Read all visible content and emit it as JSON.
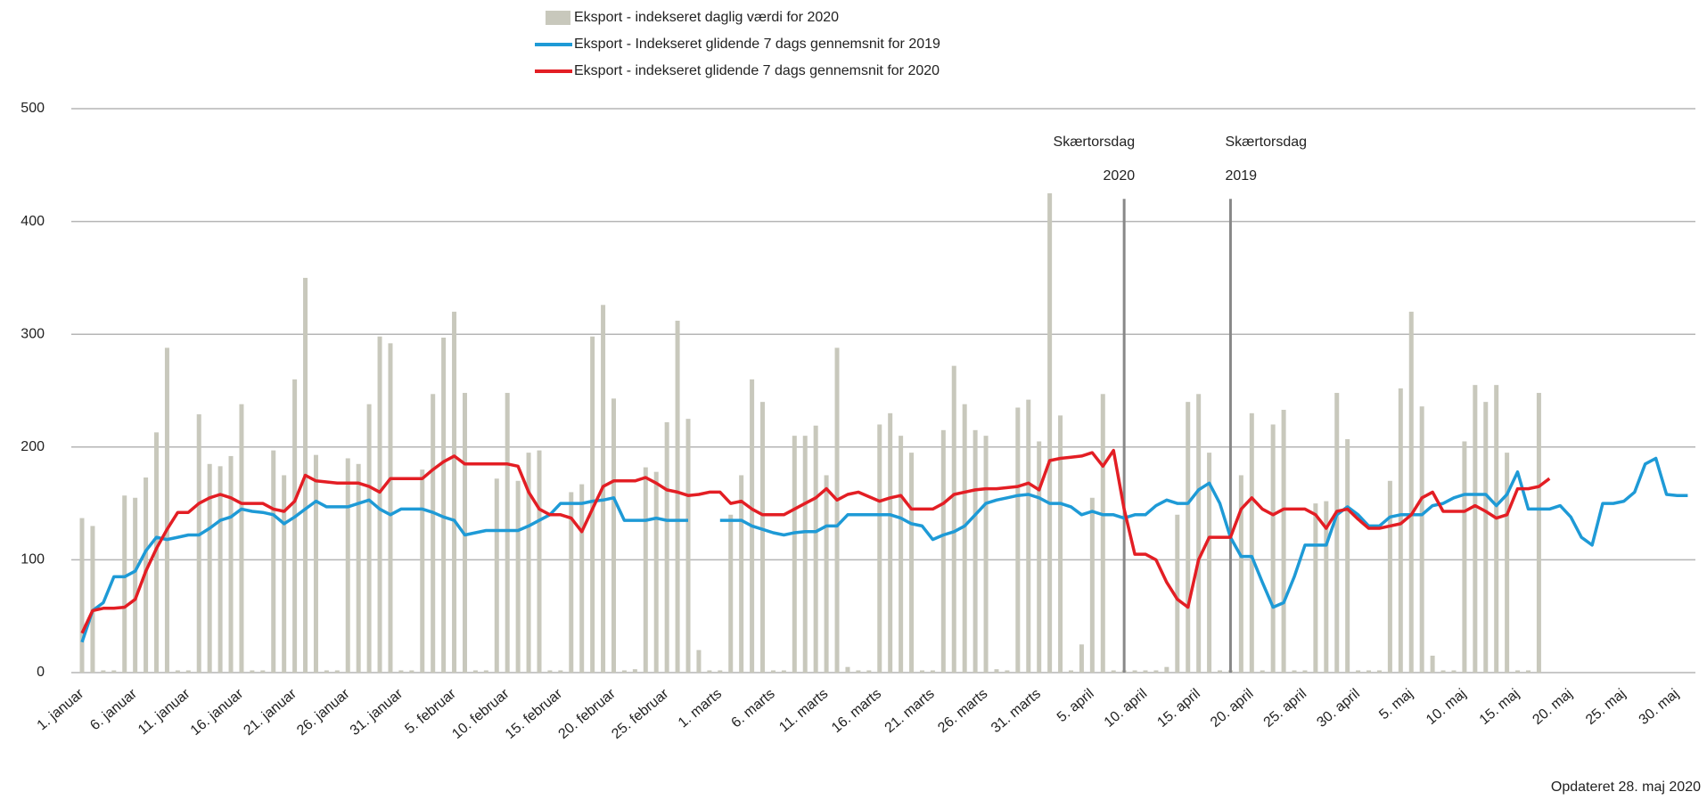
{
  "chart_data": {
    "type": "combo",
    "categories": [
      "1. januar",
      null,
      null,
      null,
      null,
      "6. januar",
      null,
      null,
      null,
      null,
      "11. januar",
      null,
      null,
      null,
      null,
      "16. januar",
      null,
      null,
      null,
      null,
      "21. januar",
      null,
      null,
      null,
      null,
      "26. januar",
      null,
      null,
      null,
      null,
      "31. januar",
      null,
      null,
      null,
      null,
      "5. februar",
      null,
      null,
      null,
      null,
      "10. februar",
      null,
      null,
      null,
      null,
      "15. februar",
      null,
      null,
      null,
      null,
      "20. februar",
      null,
      null,
      null,
      null,
      "25. februar",
      null,
      null,
      null,
      null,
      "1. marts",
      null,
      null,
      null,
      null,
      "6. marts",
      null,
      null,
      null,
      null,
      "11. marts",
      null,
      null,
      null,
      null,
      "16. marts",
      null,
      null,
      null,
      null,
      "21. marts",
      null,
      null,
      null,
      null,
      "26. marts",
      null,
      null,
      null,
      null,
      "31. marts",
      null,
      null,
      null,
      null,
      "5. april",
      null,
      null,
      null,
      null,
      "10. april",
      null,
      null,
      null,
      null,
      "15. april",
      null,
      null,
      null,
      null,
      "20. april",
      null,
      null,
      null,
      null,
      "25. april",
      null,
      null,
      null,
      null,
      "30. april",
      null,
      null,
      null,
      null,
      "5. maj",
      null,
      null,
      null,
      null,
      "10. maj",
      null,
      null,
      null,
      null,
      "15. maj",
      null,
      null,
      null,
      null,
      "20. maj",
      null,
      null,
      null,
      null,
      "25. maj",
      null,
      null,
      null,
      null,
      "30. maj",
      null
    ],
    "series": [
      {
        "name": "Eksport - indekseret daglig værdi for 2020",
        "type": "bar",
        "color": "#c8c8bc",
        "values": [
          137,
          130,
          2,
          2,
          157,
          155,
          173,
          213,
          288,
          2,
          2,
          229,
          185,
          183,
          192,
          238,
          2,
          2,
          197,
          175,
          260,
          350,
          193,
          2,
          2,
          190,
          185,
          238,
          298,
          292,
          2,
          2,
          180,
          247,
          297,
          320,
          248,
          2,
          2,
          172,
          248,
          170,
          195,
          197,
          2,
          2,
          160,
          167,
          298,
          326,
          243,
          2,
          3,
          182,
          178,
          222,
          312,
          225,
          20,
          2,
          2,
          140,
          175,
          260,
          240,
          2,
          2,
          210,
          210,
          219,
          175,
          288,
          5,
          2,
          2,
          220,
          230,
          210,
          195,
          2,
          2,
          215,
          272,
          238,
          215,
          210,
          3,
          2,
          235,
          242,
          205,
          425,
          228,
          2,
          25,
          155,
          247,
          2,
          2,
          2,
          2,
          2,
          5,
          140,
          240,
          247,
          195,
          2,
          2,
          175,
          230,
          2,
          220,
          233,
          2,
          2,
          150,
          152,
          248,
          207,
          2,
          2,
          2,
          170,
          252,
          320,
          236,
          15,
          2,
          2,
          205,
          255,
          240,
          255,
          195,
          2,
          2,
          248,
          null,
          null,
          null,
          null,
          null,
          null,
          null,
          null,
          null,
          null,
          null,
          null,
          null,
          null
        ]
      },
      {
        "name": "Eksport - Indekseret glidende 7 dags gennemsnit for 2019",
        "type": "line",
        "color": "#1e9ad6",
        "values": [
          27,
          55,
          62,
          85,
          85,
          90,
          108,
          120,
          118,
          120,
          122,
          122,
          128,
          135,
          138,
          145,
          143,
          142,
          140,
          132,
          138,
          145,
          152,
          147,
          147,
          147,
          150,
          153,
          145,
          140,
          145,
          145,
          145,
          142,
          138,
          135,
          122,
          124,
          126,
          126,
          126,
          126,
          130,
          135,
          140,
          150,
          150,
          150,
          152,
          153,
          155,
          135,
          135,
          135,
          137,
          135,
          135,
          135,
          null,
          null,
          135,
          135,
          135,
          130,
          127,
          124,
          122,
          124,
          125,
          125,
          130,
          130,
          140,
          140,
          140,
          140,
          140,
          137,
          132,
          130,
          118,
          122,
          125,
          130,
          140,
          150,
          153,
          155,
          157,
          158,
          155,
          150,
          150,
          147,
          140,
          143,
          140,
          140,
          137,
          140,
          140,
          148,
          153,
          150,
          150,
          162,
          168,
          150,
          120,
          103,
          103,
          80,
          58,
          62,
          85,
          113,
          113,
          113,
          140,
          147,
          140,
          130,
          130,
          138,
          140,
          140,
          140,
          148,
          150,
          155,
          158,
          158,
          158,
          148,
          158,
          178,
          145,
          145,
          145,
          148,
          138,
          120,
          113,
          150,
          150,
          152,
          160,
          185,
          190,
          158,
          157,
          157
        ]
      },
      {
        "name": "Eksport - indekseret glidende 7 dags gennemsnit for 2020",
        "type": "line",
        "color": "#e31e24",
        "values": [
          35,
          55,
          57,
          57,
          58,
          65,
          90,
          110,
          127,
          142,
          142,
          150,
          155,
          158,
          155,
          150,
          150,
          150,
          145,
          143,
          152,
          175,
          170,
          169,
          168,
          168,
          168,
          165,
          160,
          172,
          172,
          172,
          172,
          180,
          187,
          192,
          185,
          185,
          185,
          185,
          185,
          183,
          160,
          145,
          140,
          140,
          137,
          125,
          145,
          165,
          170,
          170,
          170,
          173,
          168,
          162,
          160,
          157,
          158,
          160,
          160,
          150,
          152,
          145,
          140,
          140,
          140,
          145,
          150,
          155,
          163,
          153,
          158,
          160,
          156,
          152,
          155,
          157,
          145,
          145,
          145,
          150,
          158,
          160,
          162,
          163,
          163,
          164,
          165,
          168,
          162,
          188,
          190,
          191,
          192,
          195,
          183,
          197,
          145,
          105,
          105,
          100,
          80,
          65,
          58,
          100,
          120,
          120,
          120,
          145,
          155,
          145,
          140,
          145,
          145,
          145,
          140,
          128,
          143,
          145,
          136,
          128,
          128,
          130,
          132,
          140,
          155,
          160,
          143,
          143,
          143,
          148,
          143,
          137,
          140,
          163,
          163,
          165,
          172,
          null,
          null,
          null,
          null,
          null,
          null,
          null,
          null,
          null,
          null,
          null,
          null,
          null
        ]
      }
    ],
    "ylim": [
      0,
      500
    ],
    "yticks": [
      0,
      100,
      200,
      300,
      400,
      500
    ],
    "grid": true,
    "annotations": [
      {
        "text": "Skærtorsdag",
        "subtext": "2020",
        "x": 98,
        "y": 420,
        "align": "right"
      },
      {
        "text": "Skærtorsdag",
        "subtext": "2019",
        "x": 108,
        "y": 420,
        "align": "left"
      }
    ],
    "footnote": "Opdateret 28. maj 2020"
  }
}
